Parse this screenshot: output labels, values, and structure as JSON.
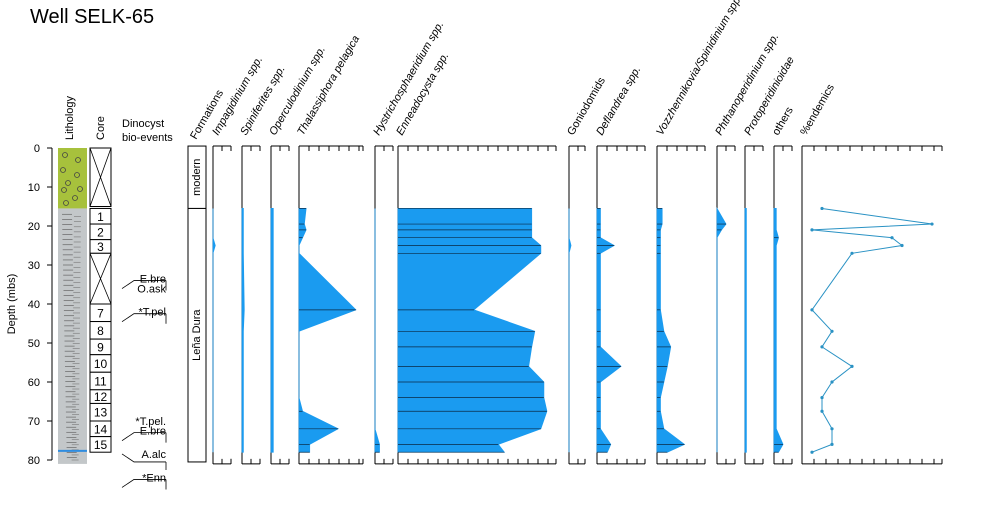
{
  "title": "Well SELK-65",
  "chart_data": {
    "type": "area",
    "title": "Well SELK-65",
    "ylabel": "Depth (mbs)",
    "ylim": [
      0,
      80
    ],
    "yticks": [
      0,
      10,
      20,
      30,
      40,
      50,
      60,
      70,
      80
    ],
    "column_headers": {
      "lithology": "Lithology",
      "core": "Core",
      "bioevents": "Dinocyst bio-events",
      "formations": "Formations"
    },
    "formations": [
      {
        "name": "modern",
        "top": 0,
        "bottom": 10
      },
      {
        "name": "Leña Dura",
        "top": 10,
        "bottom": 81
      }
    ],
    "cores": [
      {
        "label": "1",
        "top": 15.5,
        "bottom": 19.5
      },
      {
        "label": "2",
        "top": 19.5,
        "bottom": 23.5
      },
      {
        "label": "3",
        "top": 23.5,
        "bottom": 27
      },
      {
        "label": "",
        "top": 27,
        "bottom": 40
      },
      {
        "label": "7",
        "top": 40,
        "bottom": 44.5
      },
      {
        "label": "8",
        "top": 44.5,
        "bottom": 49
      },
      {
        "label": "9",
        "top": 49,
        "bottom": 53
      },
      {
        "label": "10",
        "top": 53,
        "bottom": 57.5
      },
      {
        "label": "11",
        "top": 57.5,
        "bottom": 62
      },
      {
        "label": "12",
        "top": 62,
        "bottom": 65.5
      },
      {
        "label": "13",
        "top": 65.5,
        "bottom": 70
      },
      {
        "label": "14",
        "top": 70,
        "bottom": 74
      },
      {
        "label": "15",
        "top": 74,
        "bottom": 78
      }
    ],
    "bioevents": [
      {
        "label": "E.bre",
        "depth": 34.5
      },
      {
        "label": "O.ask",
        "depth": 37
      },
      {
        "label": "*T.pel",
        "depth": 43
      },
      {
        "label": "*T.pel.",
        "depth": 71
      },
      {
        "label": "E.bre",
        "depth": 73.5
      },
      {
        "label": "A.alc",
        "depth": 80.5
      },
      {
        "label": "*Enn",
        "depth": 85.5
      }
    ],
    "sample_depths": [
      15.5,
      19.5,
      21,
      23,
      25,
      27,
      41.5,
      47,
      51,
      56,
      60,
      64,
      67.5,
      72,
      76,
      78
    ],
    "series": [
      {
        "name": "Impagidinium spp.",
        "values": [
          0,
          0,
          0,
          0,
          0.5,
          0,
          0,
          0,
          0,
          0,
          0,
          0,
          0,
          0,
          0,
          0
        ]
      },
      {
        "name": "Spiniferites spp.",
        "values": [
          0.3,
          0.3,
          0.3,
          0.3,
          0.3,
          0.3,
          0.5,
          0.3,
          0.3,
          0.3,
          0.3,
          0.3,
          0.3,
          0.3,
          0.3,
          0.3
        ]
      },
      {
        "name": "Operculodinium spp.",
        "values": [
          0.5,
          0.5,
          0.5,
          0.5,
          0.5,
          0.5,
          0.5,
          0.5,
          0.5,
          0.5,
          0.5,
          0.5,
          0.5,
          0.5,
          0.5,
          0.5
        ]
      },
      {
        "name": "Thalassiphora pelagica",
        "values": [
          2,
          1.5,
          2,
          1,
          0,
          0,
          16,
          0,
          0,
          0,
          0,
          0,
          1,
          11,
          3,
          3
        ]
      },
      {
        "name": "Hystrichosphaeridium spp.",
        "values": [
          0,
          0,
          0,
          0,
          0,
          0,
          0,
          0,
          0,
          0,
          0,
          0,
          0,
          0,
          1,
          1
        ]
      },
      {
        "name": "Enneadocysta spp.",
        "values": [
          44,
          44,
          44,
          44,
          47,
          47,
          25,
          45,
          44,
          43,
          48,
          48,
          49,
          47,
          33,
          35
        ]
      },
      {
        "name": "Goniodomids",
        "values": [
          0,
          0,
          0,
          0,
          0.5,
          0,
          0,
          0,
          0,
          0,
          0,
          0,
          0,
          0,
          0,
          0
        ]
      },
      {
        "name": "Deflandrea spp.",
        "values": [
          1,
          1,
          1,
          1,
          5,
          1,
          1,
          1,
          1,
          7,
          1,
          1,
          1,
          1,
          4,
          3
        ]
      },
      {
        "name": "Vozzhennikovia/Spinidinium spp.",
        "values": [
          1.5,
          1.5,
          1,
          1,
          1,
          1,
          1,
          2,
          4,
          3,
          2,
          1,
          1,
          2,
          8,
          3
        ]
      },
      {
        "name": "Phthanoperidinium spp.",
        "values": [
          0,
          2,
          1,
          0,
          0,
          0,
          0,
          0,
          0,
          0,
          0,
          0,
          0,
          0,
          0,
          0
        ]
      },
      {
        "name": "Protoperidinioidae",
        "values": [
          0.3,
          0.3,
          0.3,
          0.3,
          0.3,
          0.3,
          0.3,
          0.3,
          0.3,
          0.3,
          0.3,
          0.3,
          0.3,
          0.3,
          0.3,
          0.3
        ]
      },
      {
        "name": "others",
        "values": [
          0.5,
          0.5,
          0.5,
          1,
          0.5,
          0.5,
          0.5,
          0.5,
          0.5,
          0.5,
          0.5,
          0.5,
          0.5,
          0.5,
          2,
          1
        ]
      },
      {
        "name": "%endemics",
        "values": [
          2,
          13,
          1,
          9,
          10,
          5,
          1,
          3,
          2,
          5,
          3,
          2,
          2,
          3,
          3,
          1
        ]
      }
    ],
    "fill_color": "#1a9bf0",
    "line_color": "#2a92c4",
    "lithology_colors": {
      "olive": "#a7c13c",
      "grey": "#c3c7c9"
    }
  }
}
